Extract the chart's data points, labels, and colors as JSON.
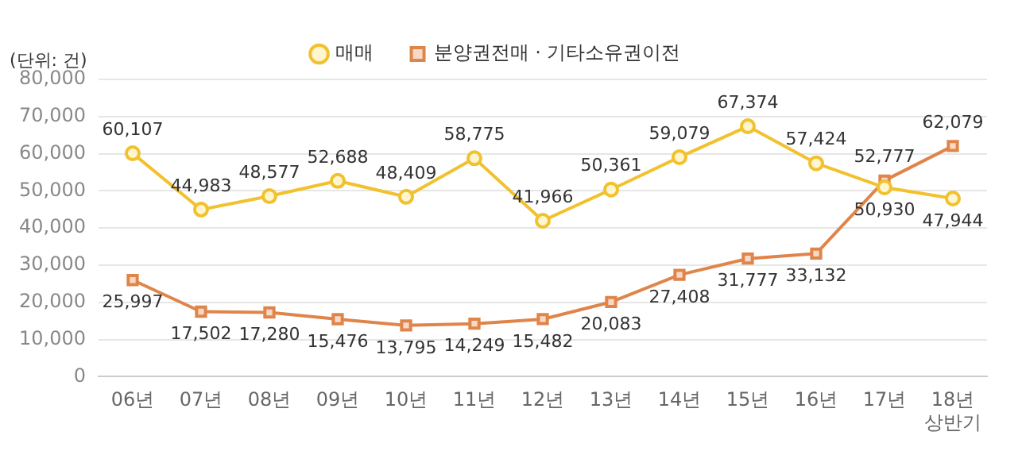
{
  "chart_data": {
    "type": "line",
    "categories": [
      "06년",
      "07년",
      "08년",
      "09년",
      "10년",
      "11년",
      "12년",
      "13년",
      "14년",
      "15년",
      "16년",
      "17년",
      "18년\n상반기"
    ],
    "series": [
      {
        "name": "매매",
        "color": "#f2c12e",
        "marker": "circle",
        "values": [
          60107,
          44983,
          48577,
          52688,
          48409,
          58775,
          41966,
          50361,
          59079,
          67374,
          57424,
          50930,
          47944
        ],
        "value_labels": [
          "60,107",
          "44,983",
          "48,577",
          "52,688",
          "48,409",
          "58,775",
          "41,966",
          "50,361",
          "59,079",
          "67,374",
          "57,424",
          "50,930",
          "47,944"
        ]
      },
      {
        "name": "분양권전매 · 기타소유권이전",
        "color": "#e0854a",
        "marker": "square",
        "values": [
          25997,
          17502,
          17280,
          15476,
          13795,
          14249,
          15482,
          20083,
          27408,
          31777,
          33132,
          52777,
          62079
        ],
        "value_labels": [
          "25,997",
          "17,502",
          "17,280",
          "15,476",
          "13,795",
          "14,249",
          "15,482",
          "20,083",
          "27,408",
          "31,777",
          "33,132",
          "52,777",
          "62,079"
        ]
      }
    ],
    "ylim": [
      0,
      80000
    ],
    "yticks": [
      {
        "value": 0,
        "label": "0"
      },
      {
        "value": 10000,
        "label": "10,000"
      },
      {
        "value": 20000,
        "label": "20,000"
      },
      {
        "value": 30000,
        "label": "30,000"
      },
      {
        "value": 40000,
        "label": "40,000"
      },
      {
        "value": 50000,
        "label": "50,000"
      },
      {
        "value": 60000,
        "label": "60,000"
      },
      {
        "value": 70000,
        "label": "70,000"
      },
      {
        "value": 80000,
        "label": "80,000"
      }
    ],
    "annotations": [
      "(단위: 건)"
    ],
    "grid": "y",
    "legend": "top",
    "line_style": "solid"
  }
}
